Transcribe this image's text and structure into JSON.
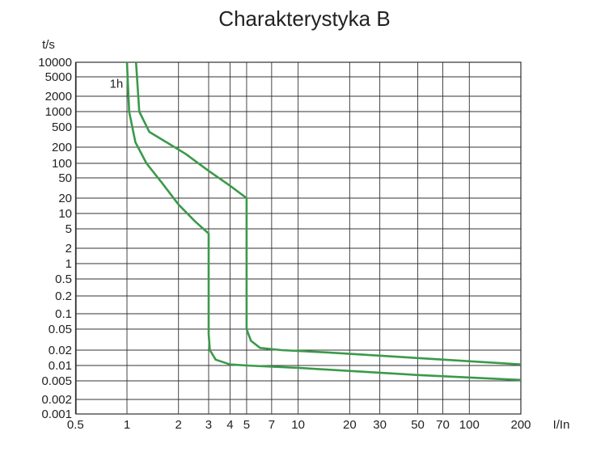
{
  "chart_data": {
    "type": "line",
    "title": "Charakterystyka B",
    "xlabel": "I/In",
    "ylabel": "t/s",
    "x_scale": "log",
    "y_scale": "log",
    "xlim": [
      0.5,
      200
    ],
    "ylim": [
      0.001,
      10000
    ],
    "x_ticks": [
      0.5,
      1,
      2,
      3,
      4,
      5,
      7,
      10,
      20,
      30,
      50,
      70,
      100,
      200
    ],
    "x_tick_labels": [
      "0.5",
      "1",
      "2",
      "3",
      "4",
      "5",
      "7",
      "10",
      "20",
      "30",
      "50",
      "70",
      "100",
      "200"
    ],
    "y_ticks": [
      10000,
      5000,
      2000,
      1000,
      500,
      200,
      100,
      50,
      20,
      10,
      5,
      2,
      1,
      0.5,
      0.2,
      0.1,
      0.05,
      0.02,
      0.01,
      0.005,
      0.002,
      0.001
    ],
    "y_tick_labels": [
      "10000",
      "5000",
      "2000",
      "1000",
      "500",
      "200",
      "100",
      "50",
      "20",
      "10",
      "5",
      "2",
      "1",
      "0.5",
      "0.2",
      "0.1",
      "0.05",
      "0.02",
      "0.01",
      "0.005",
      "0.002",
      "0.001"
    ],
    "annotations": [
      {
        "text": "1h",
        "x": 0.95,
        "y": 3600
      }
    ],
    "grid": true,
    "color": "#3a9a4a",
    "series": [
      {
        "points": [
          [
            1.0,
            10000
          ],
          [
            1.03,
            1000
          ],
          [
            1.12,
            250
          ],
          [
            1.3,
            100
          ],
          [
            1.6,
            40
          ],
          [
            2.0,
            15
          ],
          [
            2.5,
            7
          ],
          [
            3.0,
            4
          ],
          [
            3.0,
            0.04
          ],
          [
            3.05,
            0.02
          ],
          [
            3.3,
            0.013
          ],
          [
            4.0,
            0.0105
          ],
          [
            5.0,
            0.01
          ],
          [
            10,
            0.009
          ],
          [
            50,
            0.0065
          ],
          [
            200,
            0.0052
          ]
        ]
      },
      {
        "points": [
          [
            1.13,
            10000
          ],
          [
            1.18,
            1000
          ],
          [
            1.35,
            400
          ],
          [
            1.7,
            250
          ],
          [
            2.2,
            150
          ],
          [
            3.0,
            70
          ],
          [
            4.0,
            35
          ],
          [
            5.0,
            20
          ],
          [
            5.0,
            0.05
          ],
          [
            5.3,
            0.03
          ],
          [
            6.0,
            0.022
          ],
          [
            8.0,
            0.02
          ],
          [
            15,
            0.018
          ],
          [
            50,
            0.014
          ],
          [
            200,
            0.0105
          ]
        ]
      }
    ]
  }
}
